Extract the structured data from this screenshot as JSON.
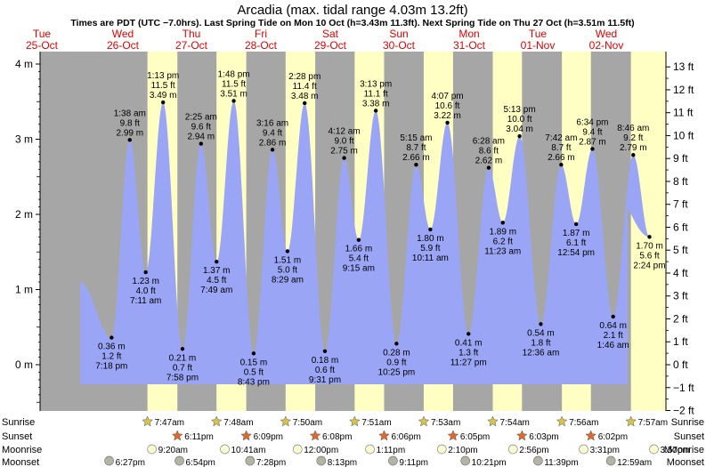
{
  "title": "Arcadia (max. tidal range 4.03m 13.2ft)",
  "subtitle": "Times are PDT (UTC −7.0hrs). Last Spring Tide on Mon 10 Oct (h=3.43m 11.3ft). Next Spring Tide on Thu 27 Oct (h=3.51m 11.5ft)",
  "colors": {
    "water": "#9aa6f5",
    "night": "#a6a6a6",
    "day": "#ffffc4",
    "date_red": "#e00000",
    "sun_star": "#d8c34a",
    "sunset_star": "#e06a2c",
    "moonrise": "#fbfbd2",
    "moonset": "#b4b4a4"
  },
  "chart_data": {
    "type": "area",
    "title": "Arcadia (max. tidal range 4.03m 13.2ft)",
    "ylabel_left_unit": "m",
    "ylabel_right_unit": "ft",
    "ylim_m": [
      -0.6,
      4.2
    ],
    "left_ticks": [
      "4 m",
      "3 m",
      "2 m",
      "1 m",
      "0 m"
    ],
    "left_tick_values": [
      4,
      3,
      2,
      1,
      0
    ],
    "right_ticks": [
      "13 ft",
      "12 ft",
      "11 ft",
      "10 ft",
      "9 ft",
      "8 ft",
      "7 ft",
      "6 ft",
      "5 ft",
      "4 ft",
      "3 ft",
      "2 ft",
      "1 ft",
      "0 ft",
      "−1 ft",
      "−2 ft"
    ],
    "right_tick_values": [
      13,
      12,
      11,
      10,
      9,
      8,
      7,
      6,
      5,
      4,
      3,
      2,
      1,
      0,
      -1,
      -2
    ],
    "days": [
      {
        "dow": "Tue",
        "date": "25-Oct"
      },
      {
        "dow": "Wed",
        "date": "26-Oct"
      },
      {
        "dow": "Thu",
        "date": "27-Oct"
      },
      {
        "dow": "Fri",
        "date": "28-Oct"
      },
      {
        "dow": "Sat",
        "date": "29-Oct"
      },
      {
        "dow": "Sun",
        "date": "30-Oct"
      },
      {
        "dow": "Mon",
        "date": "31-Oct"
      },
      {
        "dow": "Tue",
        "date": "01-Nov"
      },
      {
        "dow": "Wed",
        "date": "02-Nov"
      }
    ],
    "tides": [
      {
        "day": 0,
        "time": "7:18 pm",
        "m": 0.36,
        "ft": "1.2 ft",
        "mlabel": "0.36 m",
        "type": "low"
      },
      {
        "day": 1,
        "time": "1:38 am",
        "m": 2.99,
        "ft": "9.8 ft",
        "mlabel": "2.99 m",
        "type": "high"
      },
      {
        "day": 1,
        "time": "7:11 am",
        "m": 1.23,
        "ft": "4.0 ft",
        "mlabel": "1.23 m",
        "type": "low"
      },
      {
        "day": 1,
        "time": "1:13 pm",
        "m": 3.49,
        "ft": "11.5 ft",
        "mlabel": "3.49 m",
        "type": "high"
      },
      {
        "day": 1,
        "time": "7:58 pm",
        "m": 0.21,
        "ft": "0.7 ft",
        "mlabel": "0.21 m",
        "type": "low"
      },
      {
        "day": 2,
        "time": "2:25 am",
        "m": 2.94,
        "ft": "9.6 ft",
        "mlabel": "2.94 m",
        "type": "high"
      },
      {
        "day": 2,
        "time": "7:49 am",
        "m": 1.37,
        "ft": "4.5 ft",
        "mlabel": "1.37 m",
        "type": "low"
      },
      {
        "day": 2,
        "time": "1:48 pm",
        "m": 3.51,
        "ft": "11.5 ft",
        "mlabel": "3.51 m",
        "type": "high"
      },
      {
        "day": 2,
        "time": "8:43 pm",
        "m": 0.15,
        "ft": "0.5 ft",
        "mlabel": "0.15 m",
        "type": "low"
      },
      {
        "day": 3,
        "time": "3:16 am",
        "m": 2.86,
        "ft": "9.4 ft",
        "mlabel": "2.86 m",
        "type": "high"
      },
      {
        "day": 3,
        "time": "8:29 am",
        "m": 1.51,
        "ft": "5.0 ft",
        "mlabel": "1.51 m",
        "type": "low"
      },
      {
        "day": 3,
        "time": "2:28 pm",
        "m": 3.48,
        "ft": "11.4 ft",
        "mlabel": "3.48 m",
        "type": "high"
      },
      {
        "day": 3,
        "time": "9:31 pm",
        "m": 0.18,
        "ft": "0.6 ft",
        "mlabel": "0.18 m",
        "type": "low"
      },
      {
        "day": 4,
        "time": "4:12 am",
        "m": 2.75,
        "ft": "9.0 ft",
        "mlabel": "2.75 m",
        "type": "high"
      },
      {
        "day": 4,
        "time": "9:15 am",
        "m": 1.66,
        "ft": "5.4 ft",
        "mlabel": "1.66 m",
        "type": "low"
      },
      {
        "day": 4,
        "time": "3:13 pm",
        "m": 3.38,
        "ft": "11.1 ft",
        "mlabel": "3.38 m",
        "type": "high"
      },
      {
        "day": 4,
        "time": "10:25 pm",
        "m": 0.28,
        "ft": "0.9 ft",
        "mlabel": "0.28 m",
        "type": "low"
      },
      {
        "day": 5,
        "time": "5:15 am",
        "m": 2.66,
        "ft": "8.7 ft",
        "mlabel": "2.66 m",
        "type": "high"
      },
      {
        "day": 5,
        "time": "10:11 am",
        "m": 1.8,
        "ft": "5.9 ft",
        "mlabel": "1.80 m",
        "type": "low"
      },
      {
        "day": 5,
        "time": "4:07 pm",
        "m": 3.22,
        "ft": "10.6 ft",
        "mlabel": "3.22 m",
        "type": "high"
      },
      {
        "day": 5,
        "time": "11:27 pm",
        "m": 0.41,
        "ft": "1.3 ft",
        "mlabel": "0.41 m",
        "type": "low"
      },
      {
        "day": 6,
        "time": "6:28 am",
        "m": 2.62,
        "ft": "8.6 ft",
        "mlabel": "2.62 m",
        "type": "high"
      },
      {
        "day": 6,
        "time": "11:23 am",
        "m": 1.89,
        "ft": "6.2 ft",
        "mlabel": "1.89 m",
        "type": "low"
      },
      {
        "day": 6,
        "time": "5:13 pm",
        "m": 3.04,
        "ft": "10.0 ft",
        "mlabel": "3.04 m",
        "type": "high"
      },
      {
        "day": 7,
        "time": "12:36 am",
        "m": 0.54,
        "ft": "1.8 ft",
        "mlabel": "0.54 m",
        "type": "low"
      },
      {
        "day": 7,
        "time": "7:42 am",
        "m": 2.66,
        "ft": "8.7 ft",
        "mlabel": "2.66 m",
        "type": "high"
      },
      {
        "day": 7,
        "time": "12:54 pm",
        "m": 1.87,
        "ft": "6.1 ft",
        "mlabel": "1.87 m",
        "type": "low"
      },
      {
        "day": 7,
        "time": "6:34 pm",
        "m": 2.87,
        "ft": "9.4 ft",
        "mlabel": "2.87 m",
        "type": "high"
      },
      {
        "day": 8,
        "time": "1:46 am",
        "m": 0.64,
        "ft": "2.1 ft",
        "mlabel": "0.64 m",
        "type": "low"
      },
      {
        "day": 8,
        "time": "8:46 am",
        "m": 2.79,
        "ft": "9.2 ft",
        "mlabel": "2.79 m",
        "type": "high"
      },
      {
        "day": 8,
        "time": "2:24 pm",
        "m": 1.7,
        "ft": "5.6 ft",
        "mlabel": "1.70 m",
        "type": "low"
      }
    ]
  },
  "astro": {
    "row_labels": {
      "sunrise": "Sunrise",
      "sunset": "Sunset",
      "moonrise": "Moonrise",
      "moonset": "Moonset"
    },
    "sunrise": [
      {
        "day": 1,
        "time": "7:47am"
      },
      {
        "day": 2,
        "time": "7:48am"
      },
      {
        "day": 3,
        "time": "7:50am"
      },
      {
        "day": 4,
        "time": "7:51am"
      },
      {
        "day": 5,
        "time": "7:53am"
      },
      {
        "day": 6,
        "time": "7:54am"
      },
      {
        "day": 7,
        "time": "7:56am"
      },
      {
        "day": 8,
        "time": "7:57am"
      }
    ],
    "sunset": [
      {
        "day": 1,
        "time": "6:11pm"
      },
      {
        "day": 2,
        "time": "6:09pm"
      },
      {
        "day": 3,
        "time": "6:08pm"
      },
      {
        "day": 4,
        "time": "6:06pm"
      },
      {
        "day": 5,
        "time": "6:05pm"
      },
      {
        "day": 6,
        "time": "6:03pm"
      },
      {
        "day": 7,
        "time": "6:02pm"
      }
    ],
    "moonrise": [
      {
        "day": 1,
        "time": "9:20am"
      },
      {
        "day": 2,
        "time": "10:41am"
      },
      {
        "day": 3,
        "time": "12:00pm"
      },
      {
        "day": 4,
        "time": "1:11pm"
      },
      {
        "day": 5,
        "time": "2:10pm"
      },
      {
        "day": 6,
        "time": "2:56pm"
      },
      {
        "day": 7,
        "time": "3:31pm"
      },
      {
        "day": 8,
        "time": "3:57pm"
      }
    ],
    "moonset": [
      {
        "day": 0,
        "time": "6:27pm"
      },
      {
        "day": 1,
        "time": "6:54pm"
      },
      {
        "day": 2,
        "time": "7:28pm"
      },
      {
        "day": 3,
        "time": "8:13pm"
      },
      {
        "day": 4,
        "time": "9:11pm"
      },
      {
        "day": 5,
        "time": "10:21pm"
      },
      {
        "day": 6,
        "time": "11:39pm"
      },
      {
        "day": 8,
        "time": "12:59am"
      }
    ]
  }
}
